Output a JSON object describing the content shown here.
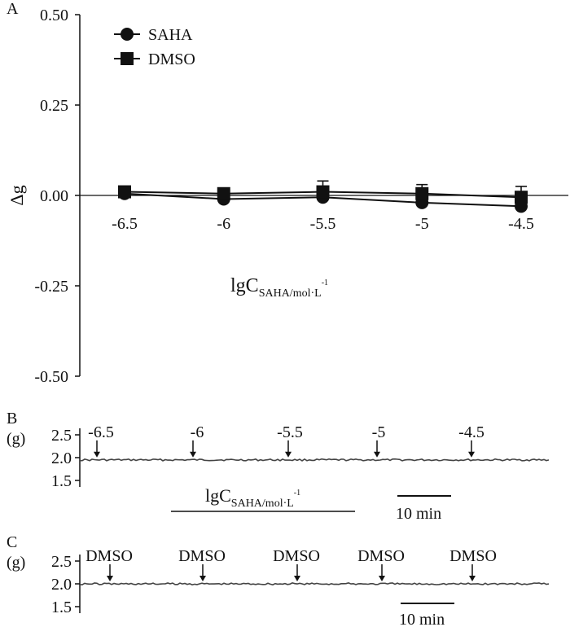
{
  "chart_data": [
    {
      "panel": "A",
      "type": "line",
      "title": "",
      "ylabel": "Δg",
      "xlabel_main": "lgC",
      "xlabel_sub": "SAHA/mol·L",
      "xlabel_sup": "-1",
      "categories": [
        "-6.5",
        "-6",
        "-5.5",
        "-5",
        "-4.5"
      ],
      "x": [
        -6.5,
        -6,
        -5.5,
        -5,
        -4.5
      ],
      "ylim": [
        -0.5,
        0.5
      ],
      "yticks": [
        "0.50",
        "0.25",
        "0.00",
        "-0.25",
        "-0.50"
      ],
      "ytick_values": [
        0.5,
        0.25,
        0.0,
        -0.25,
        -0.5
      ],
      "legend_placement": "top-left",
      "series": [
        {
          "name": "SAHA",
          "marker": "circle",
          "values": [
            0.005,
            -0.01,
            -0.005,
            -0.02,
            -0.03
          ],
          "err": [
            0.0,
            0.0,
            0.0,
            0.0,
            0.0
          ]
        },
        {
          "name": "DMSO",
          "marker": "square",
          "values": [
            0.01,
            0.005,
            0.01,
            0.005,
            -0.005
          ],
          "err": [
            0.01,
            0.015,
            0.03,
            0.025,
            0.03
          ]
        }
      ]
    },
    {
      "panel": "B",
      "type": "line",
      "ylabel": "(g)",
      "yticks": [
        "2.5",
        "2.0",
        "1.5"
      ],
      "ytick_values": [
        2.5,
        2.0,
        1.5
      ],
      "baseline": 1.95,
      "arrow_labels": [
        "-6.5",
        "-6",
        "-5.5",
        "-5",
        "-4.5"
      ],
      "xlabel_main": "lgC",
      "xlabel_sub": "SAHA/mol·L",
      "xlabel_sup": "-1",
      "scale_bar": "10 min"
    },
    {
      "panel": "C",
      "type": "line",
      "ylabel": "(g)",
      "yticks": [
        "2.5",
        "2.0",
        "1.5"
      ],
      "ytick_values": [
        2.5,
        2.0,
        1.5
      ],
      "baseline": 2.0,
      "arrow_labels": [
        "DMSO",
        "DMSO",
        "DMSO",
        "DMSO",
        "DMSO"
      ],
      "scale_bar": "10 min"
    }
  ],
  "panels": {
    "a": "A",
    "b": "B",
    "c": "C"
  }
}
